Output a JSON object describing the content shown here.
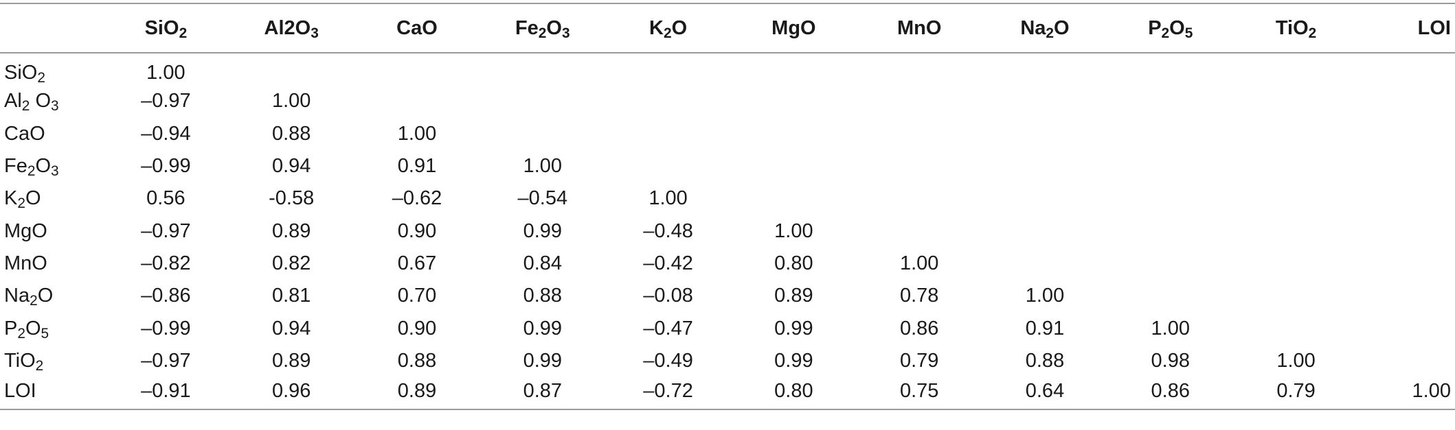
{
  "table": {
    "corner": "",
    "columns": [
      {
        "key": "SiO2",
        "base": "SiO",
        "sub": "2",
        "tail": ""
      },
      {
        "key": "Al2O3",
        "base": "Al2O",
        "sub": "3",
        "tail": ""
      },
      {
        "key": "CaO",
        "base": "CaO",
        "sub": "",
        "tail": ""
      },
      {
        "key": "Fe2O3",
        "base": "Fe",
        "sub": "2",
        "tail": "O",
        "sub2": "3"
      },
      {
        "key": "K2O",
        "base": "K",
        "sub": "2",
        "tail": "O"
      },
      {
        "key": "MgO",
        "base": "MgO",
        "sub": "",
        "tail": ""
      },
      {
        "key": "MnO",
        "base": "MnO",
        "sub": "",
        "tail": ""
      },
      {
        "key": "Na2O",
        "base": "Na",
        "sub": "2",
        "tail": "O"
      },
      {
        "key": "P2O5",
        "base": "P",
        "sub": "2",
        "tail": "O",
        "sub2": "5"
      },
      {
        "key": "TiO2",
        "base": "TiO",
        "sub": "2",
        "tail": ""
      },
      {
        "key": "LOI",
        "base": "LOI",
        "sub": "",
        "tail": ""
      }
    ],
    "rows": [
      {
        "label": {
          "base": "SiO",
          "sub": "2",
          "tail": ""
        },
        "values": [
          "1.00",
          "",
          "",
          "",
          "",
          "",
          "",
          "",
          "",
          "",
          ""
        ]
      },
      {
        "label": {
          "base": "Al",
          "sub": "2",
          "tail": " O",
          "sub2": "3"
        },
        "values": [
          "–0.97",
          "1.00",
          "",
          "",
          "",
          "",
          "",
          "",
          "",
          "",
          ""
        ]
      },
      {
        "label": {
          "base": "CaO",
          "sub": "",
          "tail": ""
        },
        "values": [
          "–0.94",
          "0.88",
          "1.00",
          "",
          "",
          "",
          "",
          "",
          "",
          "",
          ""
        ]
      },
      {
        "label": {
          "base": "Fe",
          "sub": "2",
          "tail": "O",
          "sub2": "3"
        },
        "values": [
          "–0.99",
          "0.94",
          "0.91",
          "1.00",
          "",
          "",
          "",
          "",
          "",
          "",
          ""
        ]
      },
      {
        "label": {
          "base": "K",
          "sub": "2",
          "tail": "O"
        },
        "values": [
          "0.56",
          "-0.58",
          "–0.62",
          "–0.54",
          "1.00",
          "",
          "",
          "",
          "",
          "",
          ""
        ]
      },
      {
        "label": {
          "base": "MgO",
          "sub": "",
          "tail": ""
        },
        "values": [
          "–0.97",
          "0.89",
          "0.90",
          "0.99",
          "–0.48",
          "1.00",
          "",
          "",
          "",
          "",
          ""
        ]
      },
      {
        "label": {
          "base": "MnO",
          "sub": "",
          "tail": ""
        },
        "values": [
          "–0.82",
          "0.82",
          "0.67",
          "0.84",
          "–0.42",
          "0.80",
          "1.00",
          "",
          "",
          "",
          ""
        ]
      },
      {
        "label": {
          "base": "Na",
          "sub": "2",
          "tail": "O"
        },
        "values": [
          "–0.86",
          "0.81",
          "0.70",
          "0.88",
          "–0.08",
          "0.89",
          "0.78",
          "1.00",
          "",
          "",
          ""
        ]
      },
      {
        "label": {
          "base": "P",
          "sub": "2",
          "tail": "O",
          "sub2": "5"
        },
        "values": [
          "–0.99",
          "0.94",
          "0.90",
          "0.99",
          "–0.47",
          "0.99",
          "0.86",
          "0.91",
          "1.00",
          "",
          ""
        ]
      },
      {
        "label": {
          "base": "TiO",
          "sub": "2",
          "tail": ""
        },
        "values": [
          "–0.97",
          "0.89",
          "0.88",
          "0.99",
          "–0.49",
          "0.99",
          "0.79",
          "0.88",
          "0.98",
          "1.00",
          ""
        ]
      },
      {
        "label": {
          "base": "LOI",
          "sub": "",
          "tail": ""
        },
        "values": [
          "–0.91",
          "0.96",
          "0.89",
          "0.87",
          "–0.72",
          "0.80",
          "0.75",
          "0.64",
          "0.86",
          "0.79",
          "1.00"
        ]
      }
    ]
  },
  "colors": {
    "text": "#1a1a1a",
    "rule": "#9a9a9a",
    "background": "#ffffff"
  }
}
